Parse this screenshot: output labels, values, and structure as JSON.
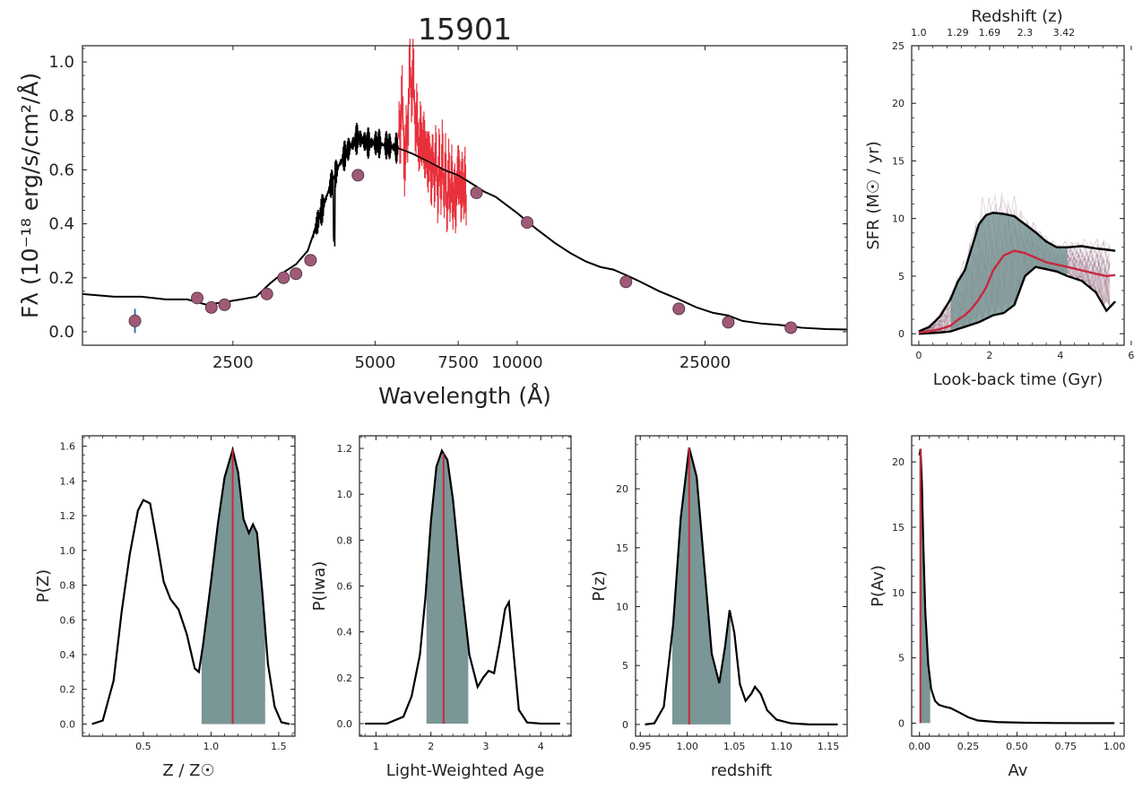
{
  "colors": {
    "model": "#000000",
    "spectrum": "#e8313c",
    "photometry": "#a05a78",
    "photometry_err": "#3a6bb5",
    "fill": "#7a9696",
    "median": "#c8283c",
    "draws": "#6b3050"
  },
  "chart_data": [
    {
      "id": "sed",
      "type": "line",
      "title": "15901",
      "xlabel": "Wavelength (Å)",
      "ylabel": "Fλ (10⁻¹⁸ erg/s/cm²/Å)",
      "xscale": "log",
      "xlim": [
        1200,
        50000
      ],
      "ylim": [
        -0.05,
        1.06
      ],
      "xticks": [
        2500,
        5000,
        7500,
        10000,
        25000
      ],
      "xtick_labels": [
        "2500",
        "5000",
        "7500",
        "10000",
        "25000"
      ],
      "yticks": [
        0.0,
        0.2,
        0.4,
        0.6,
        0.8,
        1.0
      ],
      "ytick_labels": [
        "0.0",
        "0.2",
        "0.4",
        "0.6",
        "0.8",
        "1.0"
      ],
      "model_x": [
        1200,
        1400,
        1600,
        1800,
        2000,
        2200,
        2400,
        2600,
        2800,
        3000,
        3200,
        3400,
        3600,
        3800,
        4000,
        4200,
        4400,
        4600,
        4800,
        5000,
        5300,
        5600,
        6000,
        6500,
        7000,
        7500,
        8000,
        8500,
        9000,
        10000,
        11000,
        12000,
        13000,
        14000,
        15000,
        16000,
        17000,
        18000,
        20000,
        22000,
        24000,
        26000,
        28000,
        30000,
        33000,
        36000,
        40000,
        45000,
        50000
      ],
      "model_y": [
        0.14,
        0.13,
        0.13,
        0.12,
        0.12,
        0.1,
        0.11,
        0.12,
        0.13,
        0.18,
        0.22,
        0.25,
        0.3,
        0.42,
        0.53,
        0.62,
        0.68,
        0.72,
        0.7,
        0.7,
        0.69,
        0.68,
        0.66,
        0.63,
        0.6,
        0.58,
        0.55,
        0.52,
        0.5,
        0.44,
        0.38,
        0.33,
        0.29,
        0.26,
        0.24,
        0.23,
        0.21,
        0.19,
        0.15,
        0.12,
        0.09,
        0.07,
        0.06,
        0.04,
        0.03,
        0.025,
        0.015,
        0.01,
        0.008
      ],
      "spectrum_x": [
        5600,
        5700,
        5800,
        5900,
        6000,
        6100,
        6200,
        6300,
        6400,
        6500,
        6600,
        6700,
        6800,
        6900,
        7000,
        7100,
        7200,
        7300,
        7400,
        7500,
        7600,
        7700,
        7800
      ],
      "spectrum_y": [
        0.72,
        0.85,
        0.62,
        0.9,
        0.95,
        0.78,
        0.7,
        0.72,
        0.66,
        0.64,
        0.6,
        0.62,
        0.56,
        0.6,
        0.58,
        0.5,
        0.55,
        0.52,
        0.48,
        0.6,
        0.52,
        0.55,
        0.5
      ],
      "photometry_x": [
        1550,
        2100,
        2250,
        2400,
        2950,
        3200,
        3400,
        3650,
        4600,
        8200,
        10500,
        17000,
        22000,
        28000,
        38000
      ],
      "photometry_y": [
        0.04,
        0.125,
        0.09,
        0.1,
        0.14,
        0.2,
        0.215,
        0.265,
        0.58,
        0.515,
        0.405,
        0.185,
        0.085,
        0.035,
        0.015
      ],
      "photometry_err": [
        0.045,
        0.01,
        0.01,
        0.01,
        0.01,
        0.01,
        0.01,
        0.01,
        0.01,
        0.01,
        0.01,
        0.01,
        0.01,
        0.005,
        0.005
      ]
    },
    {
      "id": "sfh",
      "type": "line",
      "xlabel": "Look-back time (Gyr)",
      "ylabel": "SFR (M☉ / yr)",
      "top_axis_label": "Redshift (z)",
      "top_ticks_x": [
        0.0,
        1.1,
        2.0,
        3.0,
        4.1
      ],
      "top_tick_labels": [
        "1.0",
        "1.29",
        "1.69",
        "2.3",
        "3.42"
      ],
      "xlim": [
        -0.2,
        5.8
      ],
      "ylim": [
        -1,
        25
      ],
      "xticks": [
        0,
        2,
        4,
        6
      ],
      "xtick_labels": [
        "0",
        "2",
        "4",
        "6"
      ],
      "yticks": [
        0,
        5,
        10,
        15,
        20,
        25
      ],
      "ytick_labels": [
        "0",
        "5",
        "10",
        "15",
        "20",
        "25"
      ],
      "x": [
        0.0,
        0.3,
        0.6,
        0.9,
        1.1,
        1.3,
        1.5,
        1.7,
        1.9,
        2.1,
        2.4,
        2.7,
        3.0,
        3.3,
        3.6,
        3.9,
        4.2,
        4.6,
        5.0,
        5.3,
        5.55
      ],
      "median": [
        0.1,
        0.2,
        0.4,
        0.7,
        1.2,
        1.6,
        2.2,
        3.0,
        4.0,
        5.5,
        6.8,
        7.2,
        7.0,
        6.6,
        6.2,
        6.0,
        5.8,
        5.5,
        5.2,
        5.0,
        5.1
      ],
      "upper": [
        0.2,
        0.6,
        1.5,
        3.0,
        4.5,
        5.5,
        7.5,
        9.5,
        10.3,
        10.5,
        10.4,
        10.2,
        9.5,
        8.8,
        8.0,
        7.5,
        7.5,
        7.6,
        7.4,
        7.3,
        7.2
      ],
      "lower": [
        0.0,
        0.05,
        0.1,
        0.2,
        0.4,
        0.6,
        0.8,
        1.0,
        1.3,
        1.6,
        1.8,
        2.5,
        5.0,
        5.8,
        5.6,
        5.4,
        5.0,
        4.6,
        3.6,
        2.0,
        2.8
      ],
      "fill_range": [
        0.9,
        4.2
      ]
    },
    {
      "id": "metallicity",
      "type": "area",
      "xlabel": "Z / Z☉",
      "ylabel": "P(Z)",
      "xlim": [
        0.05,
        1.62
      ],
      "ylim": [
        -0.07,
        1.66
      ],
      "xticks": [
        0.5,
        1.0,
        1.5
      ],
      "xtick_labels": [
        "0.5",
        "1.0",
        "1.5"
      ],
      "yticks": [
        0.0,
        0.2,
        0.4,
        0.6,
        0.8,
        1.0,
        1.2,
        1.4,
        1.6
      ],
      "ytick_labels": [
        "0.0",
        "0.2",
        "0.4",
        "0.6",
        "0.8",
        "1.0",
        "1.2",
        "1.4",
        "1.6"
      ],
      "x": [
        0.12,
        0.2,
        0.28,
        0.34,
        0.4,
        0.46,
        0.5,
        0.55,
        0.6,
        0.65,
        0.7,
        0.76,
        0.82,
        0.88,
        0.91,
        0.94,
        1.0,
        1.05,
        1.1,
        1.16,
        1.2,
        1.24,
        1.28,
        1.31,
        1.34,
        1.38,
        1.42,
        1.47,
        1.52,
        1.58
      ],
      "y": [
        0.0,
        0.02,
        0.25,
        0.65,
        0.98,
        1.23,
        1.29,
        1.27,
        1.05,
        0.82,
        0.72,
        0.66,
        0.52,
        0.32,
        0.3,
        0.45,
        0.82,
        1.15,
        1.42,
        1.58,
        1.45,
        1.18,
        1.1,
        1.15,
        1.1,
        0.75,
        0.35,
        0.1,
        0.01,
        0.0
      ],
      "median": 1.16,
      "fill_range": [
        0.93,
        1.4
      ]
    },
    {
      "id": "age",
      "type": "area",
      "xlabel": "Light-Weighted Age",
      "ylabel": "P(lwa)",
      "xlim": [
        0.7,
        4.55
      ],
      "ylim": [
        -0.055,
        1.255
      ],
      "xticks": [
        1,
        2,
        3,
        4
      ],
      "xtick_labels": [
        "1",
        "2",
        "3",
        "4"
      ],
      "yticks": [
        0.0,
        0.2,
        0.4,
        0.6,
        0.8,
        1.0,
        1.2
      ],
      "ytick_labels": [
        "0.0",
        "0.2",
        "0.4",
        "0.6",
        "0.8",
        "1.0",
        "1.2"
      ],
      "x": [
        0.8,
        1.2,
        1.5,
        1.65,
        1.8,
        1.9,
        2.0,
        2.1,
        2.2,
        2.3,
        2.4,
        2.55,
        2.7,
        2.85,
        2.95,
        3.05,
        3.15,
        3.25,
        3.35,
        3.42,
        3.5,
        3.6,
        3.75,
        4.0,
        4.35
      ],
      "y": [
        0.0,
        0.0,
        0.03,
        0.12,
        0.3,
        0.55,
        0.88,
        1.12,
        1.19,
        1.15,
        0.98,
        0.62,
        0.3,
        0.16,
        0.2,
        0.23,
        0.22,
        0.35,
        0.5,
        0.53,
        0.32,
        0.06,
        0.005,
        0.0,
        0.0
      ],
      "median": 2.23,
      "fill_range": [
        1.92,
        2.68
      ]
    },
    {
      "id": "redshift",
      "type": "area",
      "xlabel": "redshift",
      "ylabel": "P(z)",
      "xlim": [
        0.945,
        1.17
      ],
      "ylim": [
        -1,
        24.5
      ],
      "xticks": [
        0.95,
        1.0,
        1.05,
        1.1,
        1.15
      ],
      "xtick_labels": [
        "0.95",
        "1.00",
        "1.05",
        "1.10",
        "1.15"
      ],
      "yticks": [
        0,
        5,
        10,
        15,
        20
      ],
      "ytick_labels": [
        "0",
        "5",
        "10",
        "15",
        "20"
      ],
      "x": [
        0.955,
        0.965,
        0.975,
        0.985,
        0.993,
        1.002,
        1.01,
        1.018,
        1.026,
        1.034,
        1.04,
        1.045,
        1.05,
        1.056,
        1.062,
        1.068,
        1.072,
        1.078,
        1.085,
        1.095,
        1.11,
        1.13,
        1.16
      ],
      "y": [
        0.0,
        0.1,
        1.5,
        8.5,
        17.5,
        23.5,
        21.0,
        13.5,
        6.0,
        3.5,
        6.5,
        9.7,
        7.8,
        3.4,
        2.0,
        2.6,
        3.2,
        2.6,
        1.2,
        0.4,
        0.1,
        0.0,
        0.0
      ],
      "median": 1.002,
      "fill_range": [
        0.984,
        1.046
      ]
    },
    {
      "id": "dust",
      "type": "area",
      "xlabel": "Av",
      "ylabel": "P(Av)",
      "xlim": [
        -0.04,
        1.05
      ],
      "ylim": [
        -1,
        22
      ],
      "xticks": [
        0.0,
        0.25,
        0.5,
        0.75,
        1.0
      ],
      "xtick_labels": [
        "0.00",
        "0.25",
        "0.50",
        "0.75",
        "1.00"
      ],
      "yticks": [
        0,
        5,
        10,
        15,
        20
      ],
      "ytick_labels": [
        "0",
        "5",
        "10",
        "15",
        "20"
      ],
      "x": [
        0.0,
        0.005,
        0.012,
        0.02,
        0.03,
        0.045,
        0.06,
        0.08,
        0.1,
        0.13,
        0.16,
        0.2,
        0.25,
        0.3,
        0.4,
        0.55,
        0.7,
        0.85,
        1.0
      ],
      "y": [
        20.5,
        21.0,
        18.5,
        13.5,
        8.5,
        4.5,
        2.6,
        1.7,
        1.4,
        1.25,
        1.15,
        0.85,
        0.45,
        0.2,
        0.08,
        0.03,
        0.01,
        0.0,
        0.0
      ],
      "median": 0.005,
      "fill_range": [
        0.0,
        0.055
      ]
    }
  ]
}
